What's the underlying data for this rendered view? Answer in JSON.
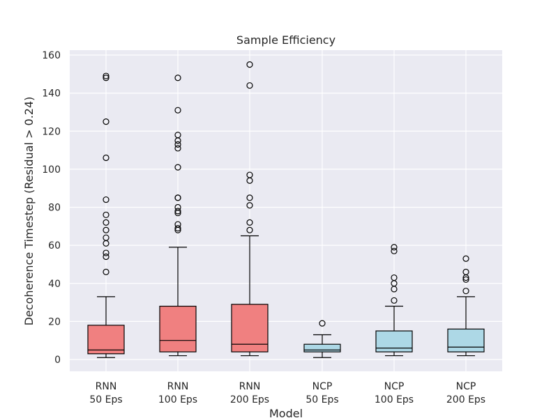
{
  "chart_data": {
    "type": "box",
    "title": "Sample Efficiency",
    "xlabel": "Model",
    "ylabel": "Decoherence Timestep (Residual > 0.24)",
    "ylim": [
      -6,
      162
    ],
    "yticks": [
      0,
      20,
      40,
      60,
      80,
      100,
      120,
      140,
      160
    ],
    "grid": true,
    "colors": {
      "rnn": "#f08080",
      "ncp": "#add8e6",
      "background": "#eaeaf2",
      "grid": "#ffffff",
      "line": "#000000"
    },
    "boxes": [
      {
        "label_line1": "RNN",
        "label_line2": "50 Eps",
        "color": "#f08080",
        "whisker_low": 1,
        "q1": 3,
        "median": 5,
        "q3": 18,
        "whisker_high": 33,
        "outliers": [
          46,
          54,
          56,
          61,
          64,
          68,
          72,
          76,
          84,
          106,
          125,
          148,
          149
        ]
      },
      {
        "label_line1": "RNN",
        "label_line2": "100 Eps",
        "color": "#f08080",
        "whisker_low": 2,
        "q1": 4,
        "median": 10,
        "q3": 28,
        "whisker_high": 59,
        "outliers": [
          68,
          69,
          71,
          77,
          78,
          80,
          85,
          85,
          101,
          111,
          113,
          115,
          118,
          131,
          148
        ]
      },
      {
        "label_line1": "RNN",
        "label_line2": "200 Eps",
        "color": "#f08080",
        "whisker_low": 2,
        "q1": 4,
        "median": 8,
        "q3": 29,
        "whisker_high": 65,
        "outliers": [
          68,
          72,
          81,
          85,
          94,
          97,
          144,
          155
        ]
      },
      {
        "label_line1": "NCP",
        "label_line2": "50 Eps",
        "color": "#add8e6",
        "whisker_low": 1,
        "q1": 4,
        "median": 5,
        "q3": 8,
        "whisker_high": 13,
        "outliers": [
          19
        ]
      },
      {
        "label_line1": "NCP",
        "label_line2": "100 Eps",
        "color": "#add8e6",
        "whisker_low": 2,
        "q1": 4,
        "median": 6,
        "q3": 15,
        "whisker_high": 28,
        "outliers": [
          31,
          37,
          40,
          43,
          57,
          59
        ]
      },
      {
        "label_line1": "NCP",
        "label_line2": "200 Eps",
        "color": "#add8e6",
        "whisker_low": 2,
        "q1": 4,
        "median": 6.5,
        "q3": 16,
        "whisker_high": 33,
        "outliers": [
          36,
          42,
          43,
          46,
          53
        ]
      }
    ]
  }
}
